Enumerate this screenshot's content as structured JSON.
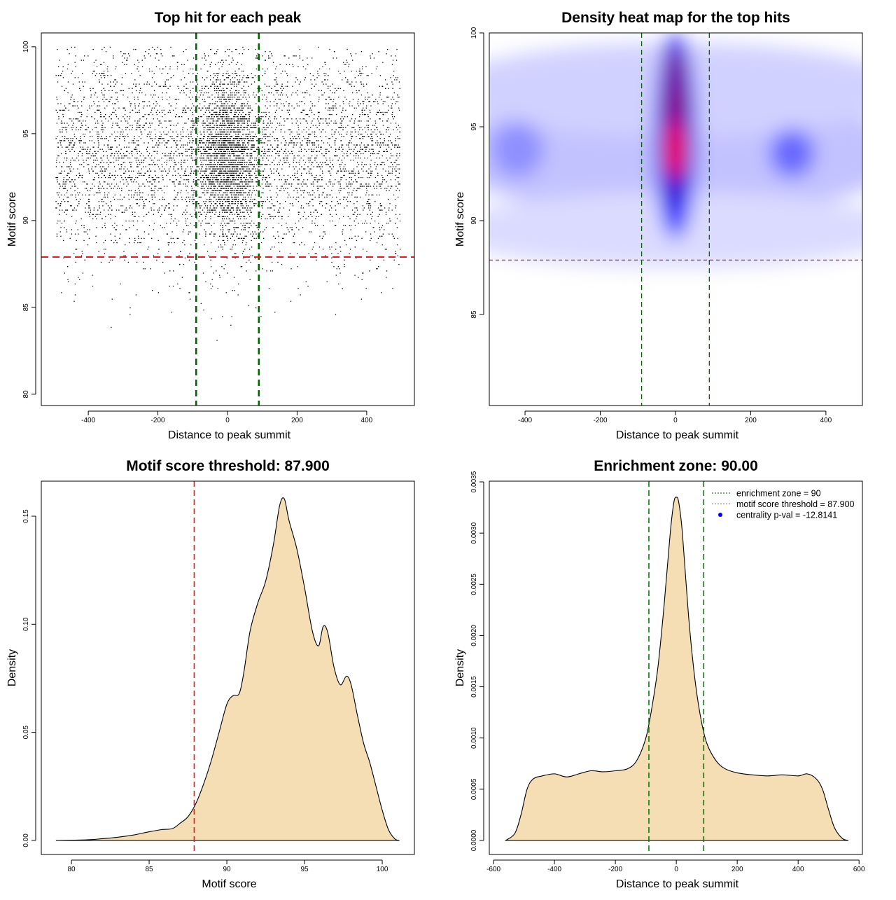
{
  "chart_data": [
    {
      "type": "scatter",
      "title": "Top hit for each peak",
      "xlabel": "Distance to peak summit",
      "ylabel": "Motif score",
      "xlim": [
        -535,
        537
      ],
      "ylim": [
        79.35,
        100.8
      ],
      "xticks": [
        -400,
        -200,
        0,
        200,
        400
      ],
      "yticks": [
        80,
        85,
        90,
        95,
        100
      ],
      "xtick_labels": [
        "-400",
        "-200",
        "0",
        "200",
        "400"
      ],
      "ytick_labels": [
        "80",
        "85",
        "90",
        "95",
        "100"
      ],
      "points_summary": {
        "n_points": 7000,
        "x_range": [
          -495,
          495
        ],
        "y_range": [
          80,
          100
        ],
        "central_cluster_x_sd": 45,
        "score_mode": 93.8
      },
      "vlines": [
        -90,
        90
      ],
      "hline": 87.9,
      "vline_color": "#006400",
      "hline_color": "#e41a1c",
      "grid": false
    },
    {
      "type": "heatmap",
      "title": "Density heat map for the top hits",
      "xlabel": "Distance to peak summit",
      "ylabel": "Motif score",
      "xlim": [
        -495,
        497
      ],
      "ylim": [
        80.15,
        100
      ],
      "xticks": [
        -400,
        -200,
        0,
        200,
        400
      ],
      "yticks": [
        85,
        90,
        95,
        100
      ],
      "xtick_labels": [
        "-400",
        "-200",
        "0",
        "200",
        "400"
      ],
      "ytick_labels": [
        "85",
        "90",
        "95",
        "100"
      ],
      "density_peaks": [
        {
          "x": 0,
          "y": 93.5,
          "sx": 620,
          "sy": 3.2,
          "level": 0.12
        },
        {
          "x": 0,
          "y": 89.5,
          "sx": 620,
          "sy": 2.0,
          "level": 0.07
        },
        {
          "x": 0,
          "y": 97,
          "sx": 620,
          "sy": 2.5,
          "level": 0.09
        },
        {
          "x": 310,
          "y": 93.6,
          "sx": 60,
          "sy": 1.3,
          "level": 0.3
        },
        {
          "x": -420,
          "y": 93.8,
          "sx": 70,
          "sy": 1.5,
          "level": 0.22
        },
        {
          "x": 0,
          "y": 94.5,
          "sx": 55,
          "sy": 5.5,
          "level": 0.45
        },
        {
          "x": 0,
          "y": 95,
          "sx": 42,
          "sy": 4.4,
          "level": 0.6
        },
        {
          "x": 0,
          "y": 98,
          "sx": 22,
          "sy": 1.0,
          "level": 0.75
        },
        {
          "x": 0,
          "y": 96.2,
          "sx": 24,
          "sy": 1.1,
          "level": 0.8
        },
        {
          "x": 0,
          "y": 93.8,
          "sx": 26,
          "sy": 1.6,
          "level": 1.0
        }
      ],
      "vlines": [
        -90,
        90
      ],
      "hline": 87.9,
      "color_scale": [
        "#ffffff",
        "#0000ff",
        "#ff0000"
      ]
    },
    {
      "type": "area",
      "title": "Motif score threshold: 87.900",
      "xlabel": "Motif score",
      "ylabel": "Density",
      "xlim": [
        78.06,
        102.07
      ],
      "ylim": [
        -0.0065,
        0.1662
      ],
      "xticks": [
        80,
        85,
        90,
        95,
        100
      ],
      "yticks": [
        0,
        0.05,
        0.1,
        0.15
      ],
      "xtick_labels": [
        "80",
        "85",
        "90",
        "95",
        "100"
      ],
      "ytick_labels": [
        "0.00",
        "0.05",
        "0.10",
        "0.15"
      ],
      "x": [
        79,
        81,
        82,
        83,
        84,
        85,
        85.8,
        86.5,
        87,
        87.5,
        88,
        88.5,
        89,
        89.5,
        90,
        90.4,
        90.8,
        91.1,
        91.5,
        92,
        92.5,
        93,
        93.4,
        93.7,
        94,
        94.5,
        95,
        95.5,
        95.9,
        96.2,
        96.5,
        96.9,
        97.3,
        97.7,
        98,
        98.4,
        98.8,
        99.2,
        99.6,
        100,
        100.4,
        100.8,
        101.1
      ],
      "y": [
        0,
        0.0003,
        0.0008,
        0.0015,
        0.0025,
        0.004,
        0.005,
        0.0055,
        0.008,
        0.011,
        0.017,
        0.026,
        0.037,
        0.05,
        0.063,
        0.067,
        0.068,
        0.078,
        0.097,
        0.11,
        0.12,
        0.137,
        0.155,
        0.158,
        0.148,
        0.135,
        0.117,
        0.097,
        0.09,
        0.099,
        0.096,
        0.08,
        0.072,
        0.076,
        0.072,
        0.058,
        0.045,
        0.036,
        0.025,
        0.014,
        0.005,
        0.0008,
        0
      ],
      "vline": 87.9,
      "fill": "#f5deb3"
    },
    {
      "type": "area",
      "title": "Enrichment zone: 90.00",
      "xlabel": "Distance to peak summit",
      "ylabel": "Density",
      "xlim": [
        -614,
        611
      ],
      "ylim": [
        -0.000137,
        0.003507
      ],
      "xticks": [
        -600,
        -400,
        -200,
        0,
        200,
        400,
        600
      ],
      "yticks": [
        0,
        0.0005,
        0.001,
        0.0015,
        0.002,
        0.0025,
        0.003,
        0.0035
      ],
      "xtick_labels": [
        "-600",
        "-400",
        "-200",
        "0",
        "200",
        "400",
        "600"
      ],
      "ytick_labels": [
        "0.0000",
        "0.0005",
        "0.0010",
        "0.0015",
        "0.0020",
        "0.0025",
        "0.0030",
        "0.0035"
      ],
      "x": [
        -560,
        -530,
        -510,
        -490,
        -470,
        -440,
        -400,
        -360,
        -320,
        -280,
        -240,
        -200,
        -160,
        -130,
        -100,
        -80,
        -60,
        -40,
        -20,
        -8,
        0,
        8,
        20,
        40,
        60,
        80,
        100,
        130,
        160,
        200,
        250,
        300,
        350,
        400,
        430,
        460,
        480,
        500,
        520,
        545,
        565
      ],
      "y": [
        0,
        7e-05,
        0.00025,
        0.0005,
        0.0006,
        0.00063,
        0.00065,
        0.00062,
        0.00065,
        0.00068,
        0.00067,
        0.00068,
        0.0007,
        0.00078,
        0.001,
        0.0013,
        0.0017,
        0.0023,
        0.003,
        0.0033,
        0.00335,
        0.0033,
        0.003,
        0.0022,
        0.0016,
        0.0012,
        0.00095,
        0.00078,
        0.0007,
        0.00066,
        0.00064,
        0.00063,
        0.00064,
        0.00063,
        0.00065,
        0.0006,
        0.0005,
        0.0003,
        0.00012,
        2e-05,
        0
      ],
      "vlines": [
        -90,
        90
      ],
      "fill": "#f5deb3",
      "legend": {
        "position": "top-right",
        "entries": [
          "enrichment zone = 90",
          "motif score threshold = 87.900",
          "centrality p-val = -12.8141"
        ],
        "colors": [
          "#006400",
          "#e41a1c",
          "#0000ff"
        ]
      }
    }
  ]
}
